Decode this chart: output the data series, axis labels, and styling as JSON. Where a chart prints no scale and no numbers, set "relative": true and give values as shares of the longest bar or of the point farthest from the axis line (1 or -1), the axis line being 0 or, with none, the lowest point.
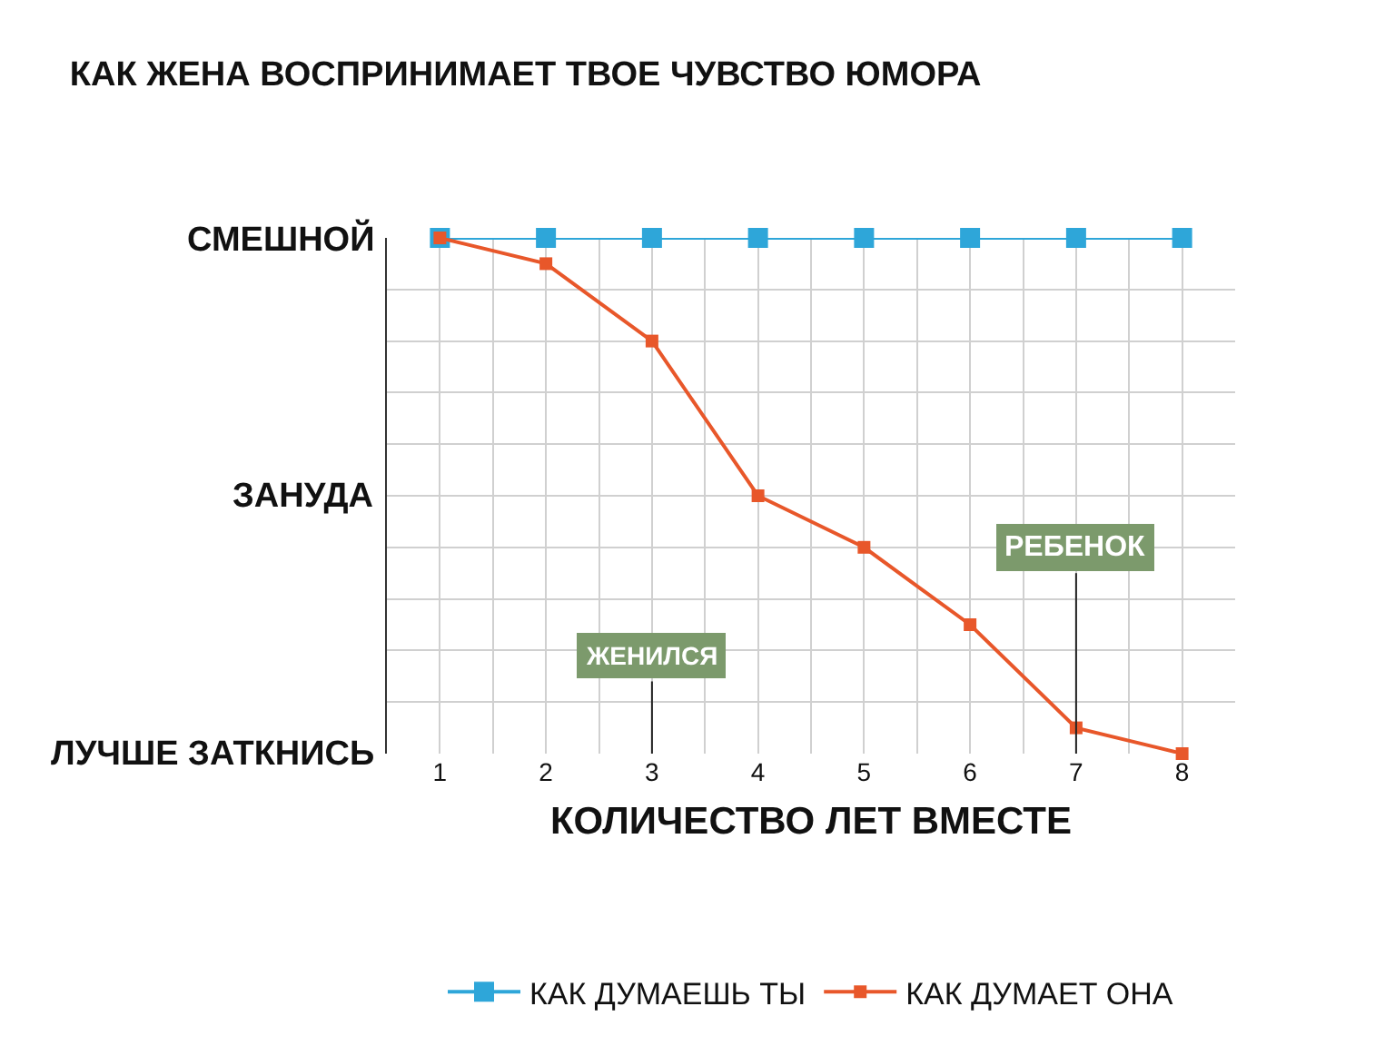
{
  "chart_data": {
    "type": "line",
    "title": "КАК ЖЕНА ВОСПРИНИМАЕТ ТВОЕ ЧУВСТВО ЮМОРА",
    "xlabel": "КОЛИЧЕСТВО ЛЕТ ВМЕСТЕ",
    "x": [
      1,
      2,
      3,
      4,
      5,
      6,
      7,
      8
    ],
    "relative": true,
    "series": [
      {
        "name": "КАК ДУМАЕШЬ ТЫ",
        "color": "#2ea6d9",
        "values": [
          1,
          1,
          1,
          1,
          1,
          1,
          1,
          1
        ]
      },
      {
        "name": "КАК ДУМАЕТ ОНА",
        "color": "#e8572a",
        "values": [
          1,
          0.95,
          0.8,
          0.5,
          0.4,
          0.25,
          0.05,
          0
        ]
      }
    ],
    "xlim": [
      0.5,
      8.5
    ],
    "xticks": [
      {
        "value": 0.5,
        "label": null
      },
      1,
      {
        "value": 1.5,
        "label": null
      },
      2,
      {
        "value": 2.5,
        "label": null
      },
      3,
      {
        "value": 3.5,
        "label": null
      },
      4,
      {
        "value": 4.5,
        "label": null
      },
      5,
      {
        "value": 5.5,
        "label": null
      },
      6,
      {
        "value": 6.5,
        "label": null
      },
      7,
      {
        "value": 7.5,
        "label": null
      },
      8
    ],
    "annotations": [
      "СМЕШНОЙ",
      "ЗАНУДА",
      "ЛУЧШЕ ЗАТКНИСЬ",
      "ЖЕНИЛСЯ",
      "РЕБЕНОК"
    ],
    "grid": true,
    "legend": "bottom",
    "marker": "square",
    "line_style": "solid"
  }
}
